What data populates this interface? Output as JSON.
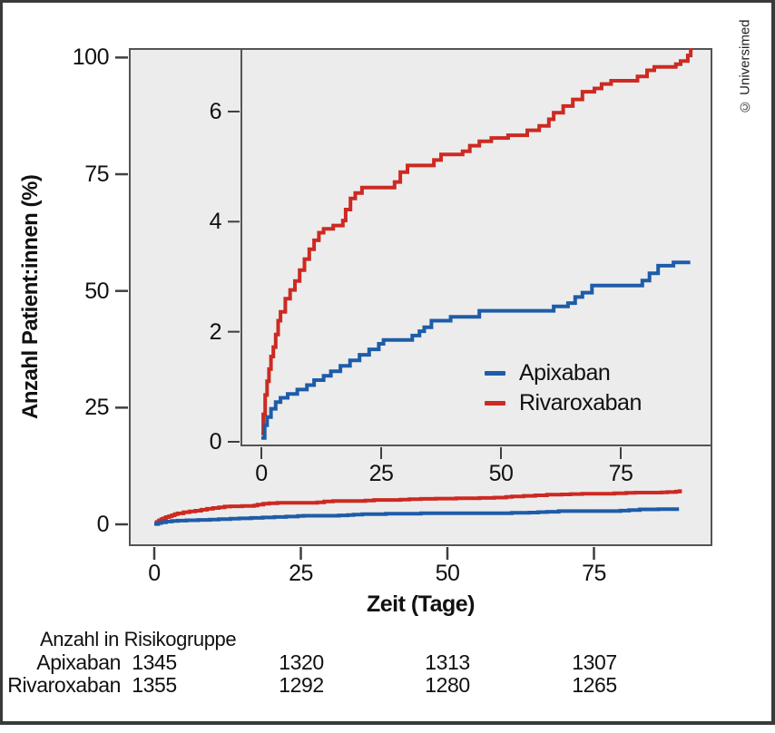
{
  "figure": {
    "copyright": "© Universimed",
    "colors": {
      "apixaban": "#1e5ca8",
      "rivaroxaban": "#cc2a22",
      "panel_bg": "#ececec",
      "frame": "#545454",
      "tick": "#3f3f3f"
    }
  },
  "chart_data": {
    "type": "line",
    "subtype": "kaplan-meier-cumulative-incidence-step",
    "title": "",
    "xlabel": "Zeit (Tage)",
    "ylabel": "Anzahl Patient:innen (%)",
    "main_axis": {
      "x_ticks": [
        0,
        25,
        50,
        75
      ],
      "y_ticks": [
        0,
        25,
        50,
        75,
        100
      ],
      "xlim": [
        -4.3,
        95.2
      ],
      "ylim": [
        -4.7,
        102
      ],
      "grid": false
    },
    "inset_axis": {
      "x_ticks": [
        0,
        25,
        50,
        75
      ],
      "y_ticks": [
        0,
        2,
        4,
        6
      ],
      "xlim": [
        -4.4,
        94.1
      ],
      "ylim": [
        -0.08,
        7.16
      ],
      "grid": false
    },
    "legend": {
      "position": "inset-lower-right",
      "entries": [
        "Apixaban",
        "Rivaroxaban"
      ]
    },
    "series": [
      {
        "name": "Apixaban",
        "color": "#1e5ca8",
        "step": true,
        "points": [
          [
            0,
            0.07
          ],
          [
            0.7,
            0.3
          ],
          [
            1.2,
            0.45
          ],
          [
            2,
            0.6
          ],
          [
            3,
            0.72
          ],
          [
            4,
            0.8
          ],
          [
            5.5,
            0.87
          ],
          [
            7.5,
            0.95
          ],
          [
            9.5,
            1.03
          ],
          [
            11,
            1.12
          ],
          [
            13,
            1.2
          ],
          [
            14.5,
            1.28
          ],
          [
            16.5,
            1.38
          ],
          [
            18.5,
            1.48
          ],
          [
            20.5,
            1.58
          ],
          [
            22.5,
            1.68
          ],
          [
            24.5,
            1.78
          ],
          [
            25.5,
            1.85
          ],
          [
            31.5,
            1.93
          ],
          [
            33,
            2.01
          ],
          [
            34,
            2.08
          ],
          [
            35.5,
            2.2
          ],
          [
            39.5,
            2.27
          ],
          [
            45.5,
            2.38
          ],
          [
            61,
            2.46
          ],
          [
            64,
            2.52
          ],
          [
            65.5,
            2.63
          ],
          [
            67,
            2.71
          ],
          [
            69,
            2.84
          ],
          [
            79.5,
            2.93
          ],
          [
            81,
            3.06
          ],
          [
            82.8,
            3.2
          ],
          [
            86,
            3.26
          ],
          [
            89.5,
            3.26
          ]
        ]
      },
      {
        "name": "Rivaroxaban",
        "color": "#cc2a22",
        "step": true,
        "points": [
          [
            0,
            0.15
          ],
          [
            0.4,
            0.5
          ],
          [
            0.8,
            0.85
          ],
          [
            1.2,
            1.1
          ],
          [
            1.6,
            1.32
          ],
          [
            2,
            1.55
          ],
          [
            2.5,
            1.72
          ],
          [
            3,
            1.95
          ],
          [
            3.5,
            2.2
          ],
          [
            4,
            2.36
          ],
          [
            5,
            2.6
          ],
          [
            6,
            2.76
          ],
          [
            7,
            2.92
          ],
          [
            8,
            3.12
          ],
          [
            9,
            3.32
          ],
          [
            10,
            3.5
          ],
          [
            11,
            3.66
          ],
          [
            12,
            3.8
          ],
          [
            13,
            3.87
          ],
          [
            15,
            3.93
          ],
          [
            17,
            4.02
          ],
          [
            17.6,
            4.22
          ],
          [
            18.6,
            4.42
          ],
          [
            19.6,
            4.52
          ],
          [
            21,
            4.62
          ],
          [
            27.8,
            4.72
          ],
          [
            29,
            4.9
          ],
          [
            30.5,
            5.02
          ],
          [
            36,
            5.12
          ],
          [
            37.5,
            5.22
          ],
          [
            42,
            5.28
          ],
          [
            43.5,
            5.38
          ],
          [
            45.5,
            5.46
          ],
          [
            48,
            5.52
          ],
          [
            51.5,
            5.57
          ],
          [
            55.5,
            5.66
          ],
          [
            58,
            5.74
          ],
          [
            60,
            5.86
          ],
          [
            61,
            5.98
          ],
          [
            63,
            6.1
          ],
          [
            65,
            6.22
          ],
          [
            67,
            6.36
          ],
          [
            69.5,
            6.42
          ],
          [
            71,
            6.5
          ],
          [
            73,
            6.56
          ],
          [
            78.5,
            6.64
          ],
          [
            80.5,
            6.75
          ],
          [
            82,
            6.81
          ],
          [
            86.5,
            6.86
          ],
          [
            87.5,
            6.92
          ],
          [
            89,
            7.02
          ],
          [
            89.6,
            7.12
          ],
          [
            90,
            7.12
          ]
        ]
      }
    ],
    "risk_table": {
      "title": "Anzahl in Risikogruppe",
      "time_points": [
        0,
        25,
        50,
        75
      ],
      "rows": [
        {
          "label": "Apixaban",
          "values": [
            1345,
            1320,
            1313,
            1307
          ]
        },
        {
          "label": "Rivaroxaban",
          "values": [
            1355,
            1292,
            1280,
            1265
          ]
        }
      ]
    }
  }
}
